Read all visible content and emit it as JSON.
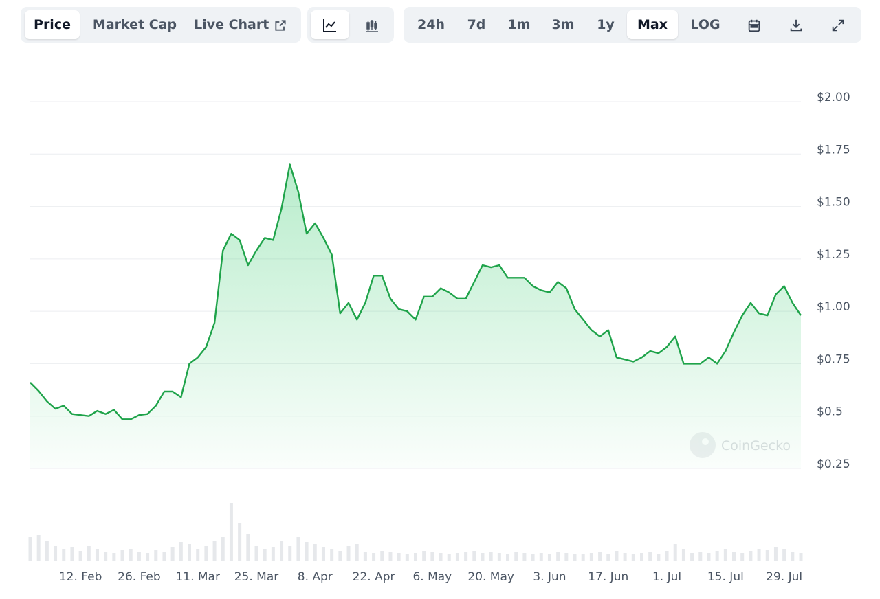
{
  "toolbar": {
    "tabs": [
      "Price",
      "Market Cap",
      "Live Chart"
    ],
    "active_tab": 0,
    "ranges": [
      "24h",
      "7d",
      "1m",
      "3m",
      "1y",
      "Max",
      "LOG"
    ],
    "active_range": 5
  },
  "chart_data": {
    "type": "line",
    "watermark": "CoinGecko",
    "categories": [
      null,
      null,
      null,
      null,
      null,
      null,
      "12. Feb",
      null,
      null,
      null,
      null,
      null,
      null,
      "26. Feb",
      null,
      null,
      null,
      null,
      null,
      null,
      "11. Mar",
      null,
      null,
      null,
      null,
      null,
      null,
      "25. Mar",
      null,
      null,
      null,
      null,
      null,
      null,
      "8. Apr",
      null,
      null,
      null,
      null,
      null,
      null,
      "22. Apr",
      null,
      null,
      null,
      null,
      null,
      null,
      "6. May",
      null,
      null,
      null,
      null,
      null,
      null,
      "20. May",
      null,
      null,
      null,
      null,
      null,
      null,
      "3. Jun",
      null,
      null,
      null,
      null,
      null,
      null,
      "17. Jun",
      null,
      null,
      null,
      null,
      null,
      null,
      "1. Jul",
      null,
      null,
      null,
      null,
      null,
      null,
      "15. Jul",
      null,
      null,
      null,
      null,
      null,
      null,
      "29. Jul",
      null,
      null
    ],
    "series": [
      {
        "name": "Price",
        "color": "#1fa34a",
        "values": [
          0.66,
          0.62,
          0.57,
          0.535,
          0.55,
          0.51,
          0.505,
          0.5,
          0.525,
          0.51,
          0.53,
          0.485,
          0.485,
          0.505,
          0.51,
          0.55,
          0.617,
          0.617,
          0.59,
          0.75,
          0.78,
          0.83,
          0.945,
          1.29,
          1.37,
          1.34,
          1.22,
          1.29,
          1.35,
          1.34,
          1.49,
          1.7,
          1.57,
          1.37,
          1.42,
          1.35,
          1.27,
          0.99,
          1.04,
          0.96,
          1.04,
          1.17,
          1.17,
          1.06,
          1.01,
          1.0,
          0.96,
          1.07,
          1.07,
          1.11,
          1.09,
          1.06,
          1.06,
          1.14,
          1.22,
          1.21,
          1.22,
          1.16,
          1.16,
          1.16,
          1.12,
          1.1,
          1.09,
          1.14,
          1.11,
          1.01,
          0.96,
          0.91,
          0.88,
          0.91,
          0.78,
          0.77,
          0.76,
          0.78,
          0.81,
          0.8,
          0.83,
          0.88,
          0.75,
          0.75,
          0.75,
          0.78,
          0.75,
          0.81,
          0.9,
          0.98,
          1.04,
          0.99,
          0.98,
          1.08,
          1.12,
          1.04,
          0.98
        ]
      }
    ],
    "volume": {
      "color": "#e6e8eb",
      "ylim": [
        0,
        100
      ],
      "values": [
        35,
        38,
        30,
        22,
        18,
        20,
        15,
        22,
        18,
        14,
        12,
        16,
        18,
        14,
        12,
        16,
        14,
        20,
        28,
        25,
        18,
        22,
        30,
        35,
        85,
        55,
        40,
        22,
        18,
        20,
        30,
        22,
        35,
        28,
        25,
        20,
        18,
        15,
        22,
        25,
        14,
        12,
        15,
        14,
        12,
        10,
        12,
        15,
        14,
        12,
        10,
        12,
        14,
        15,
        12,
        14,
        12,
        10,
        14,
        12,
        10,
        12,
        10,
        14,
        12,
        10,
        10,
        12,
        14,
        10,
        15,
        12,
        10,
        12,
        14,
        10,
        15,
        25,
        18,
        12,
        14,
        12,
        15,
        18,
        14,
        12,
        15,
        18,
        16,
        20,
        18,
        14,
        12
      ]
    },
    "ylim": [
      0.25,
      2.0
    ],
    "yticks": [
      {
        "value": 0.25,
        "label": "$0.25"
      },
      {
        "value": 0.5,
        "label": "$0.5"
      },
      {
        "value": 0.75,
        "label": "$0.75"
      },
      {
        "value": 1,
        "label": "$1.00"
      },
      {
        "value": 1.25,
        "label": "$1.25"
      },
      {
        "value": 1.5,
        "label": "$1.50"
      },
      {
        "value": 1.75,
        "label": "$1.75"
      },
      {
        "value": 2,
        "label": "$2.00"
      }
    ],
    "grid": true
  }
}
